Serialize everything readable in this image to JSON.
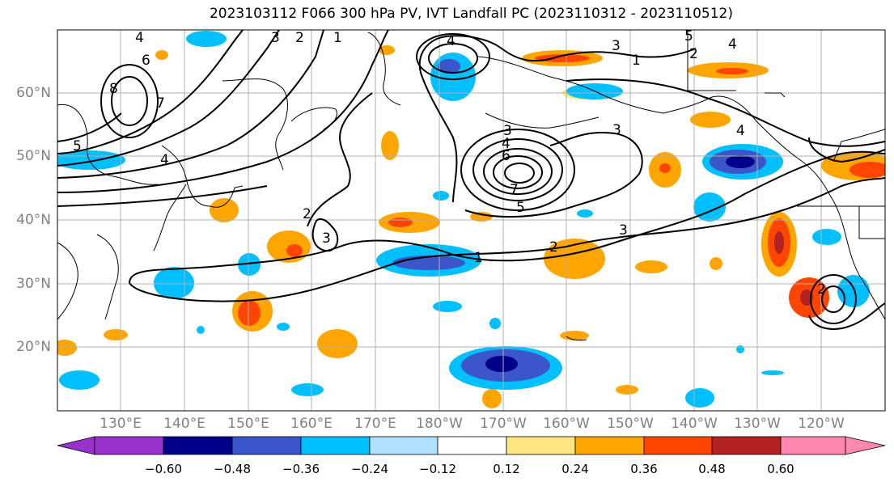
{
  "title": "2023103112 F066 300 hPa PV, IVT Landfall PC (2023110312 - 2023110512)",
  "lat_labels": [
    "60°N",
    "50°N",
    "40°N",
    "30°N",
    "20°N"
  ],
  "lon_labels": [
    "130°E",
    "140°E",
    "150°E",
    "160°E",
    "170°E",
    "180°W",
    "170°W",
    "160°W",
    "150°W",
    "140°W",
    "130°W",
    "120°W"
  ],
  "colorbar": {
    "ticks": [
      "−0.60",
      "−0.48",
      "−0.36",
      "−0.24",
      "−0.12",
      "0.12",
      "0.24",
      "0.36",
      "0.48",
      "0.60"
    ],
    "colors": [
      "#9932cc",
      "#00008b",
      "#3a56c8",
      "#00bfff",
      "#b0e0ff",
      "#ffffff",
      "#ffe680",
      "#ffa500",
      "#ff4500",
      "#b22222",
      "#ff88b0"
    ]
  },
  "contour_labels": [
    "4",
    "6",
    "8",
    "7",
    "5",
    "4",
    "3",
    "2",
    "1",
    "4",
    "3",
    "3",
    "2",
    "1",
    "5",
    "4",
    "2",
    "4",
    "3",
    "4",
    "6",
    "7",
    "5",
    "1",
    "2",
    "3",
    "2",
    "3"
  ]
}
